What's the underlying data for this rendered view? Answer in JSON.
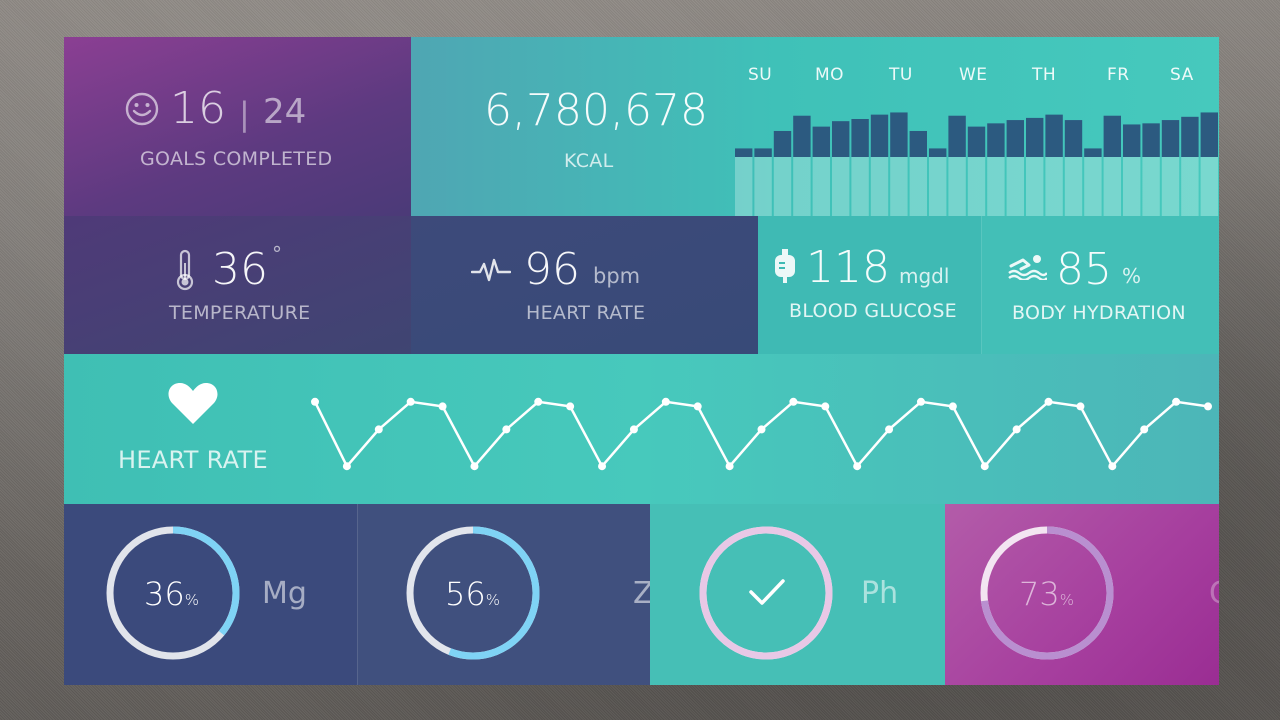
{
  "goals": {
    "completed": "16",
    "total": "24",
    "separator": "|",
    "label": "GOALS COMPLETED"
  },
  "kcal": {
    "value": "6,780,678",
    "label": "KCAL",
    "days": [
      "SU",
      "MO",
      "TU",
      "WE",
      "TH",
      "FR",
      "SA"
    ],
    "bars": [
      0.62,
      0.62,
      0.78,
      0.92,
      0.82,
      0.87,
      0.89,
      0.93,
      0.95,
      0.78,
      0.62,
      0.92,
      0.82,
      0.85,
      0.88,
      0.9,
      0.93,
      0.88,
      0.62,
      0.92,
      0.84,
      0.85,
      0.88,
      0.91,
      0.95
    ]
  },
  "temperature": {
    "value": "36",
    "unit": "°",
    "label": "TEMPERATURE"
  },
  "heart_rate_stat": {
    "value": "96",
    "unit": "bpm",
    "label": "HEART RATE"
  },
  "glucose": {
    "value": "118",
    "unit": "mgdl",
    "label": "BLOOD GLUCOSE"
  },
  "hydration": {
    "value": "85",
    "unit": "%",
    "label": "BODY HYDRATION"
  },
  "heart_chart": {
    "label": "HEART RATE",
    "points": [
      0.85,
      0.15,
      0.55,
      0.85,
      0.8,
      0.15,
      0.55,
      0.85,
      0.8,
      0.15,
      0.55,
      0.85,
      0.8,
      0.15,
      0.55,
      0.85,
      0.8,
      0.15,
      0.55,
      0.85,
      0.8,
      0.15,
      0.55,
      0.85,
      0.8,
      0.15,
      0.55,
      0.85,
      0.8
    ]
  },
  "minerals": [
    {
      "symbol": "Mg",
      "percent": "36",
      "pct_sign": "%",
      "fraction": 0.36,
      "color": "#7fd3f5"
    },
    {
      "symbol": "Zn",
      "percent": "56",
      "pct_sign": "%",
      "fraction": 0.56,
      "color": "#7fd3f5"
    },
    {
      "symbol": "Ph",
      "check": "✓",
      "fraction": 1.0,
      "color": "#e8c8e6"
    },
    {
      "symbol": "Ca",
      "percent": "73",
      "pct_sign": "%",
      "fraction": 0.73,
      "color": "#b98fd0"
    }
  ]
}
